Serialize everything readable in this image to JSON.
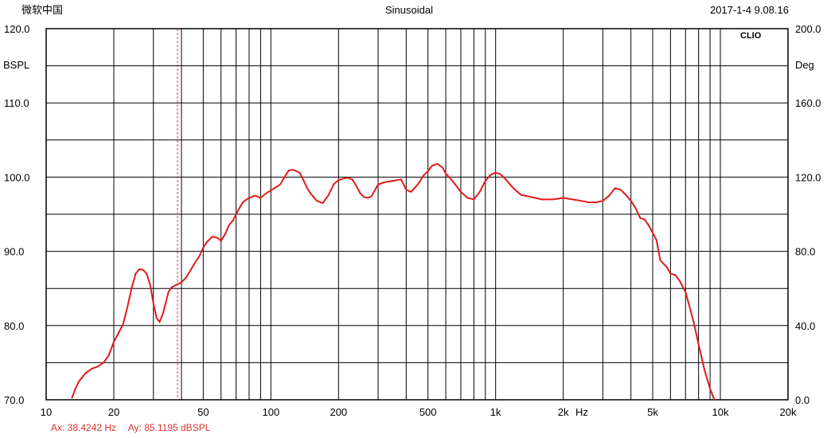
{
  "header": {
    "left_text": "微软中国",
    "title": "Sinusoidal",
    "timestamp": "2017-1-4 9.08.16",
    "brand": "CLIO"
  },
  "cursor": {
    "ax_text": "Ax: 38.4242 Hz",
    "ay_text": "Ay: 85.1195 dBSPL",
    "x": 38.4242,
    "y": 85.1195,
    "color": "#e03030"
  },
  "colors": {
    "curve": "#e01a1a",
    "cursor": "#e03030",
    "grid": "#000000",
    "background": "#ffffff"
  },
  "chart_data": {
    "type": "line",
    "x_scale": "log",
    "xlim": [
      10,
      20000
    ],
    "ylim": [
      70,
      120
    ],
    "y2lim": [
      0,
      200
    ],
    "grid": true,
    "ylabel": "BSPL",
    "y2label": "Deg",
    "xunit_label": "Hz",
    "x_ticks": [
      {
        "value": 10,
        "label": "10"
      },
      {
        "value": 20,
        "label": "20"
      },
      {
        "value": 50,
        "label": "50"
      },
      {
        "value": 100,
        "label": "100"
      },
      {
        "value": 200,
        "label": "200"
      },
      {
        "value": 500,
        "label": "500"
      },
      {
        "value": 1000,
        "label": "1k"
      },
      {
        "value": 2000,
        "label": "2k"
      },
      {
        "value": 5000,
        "label": "5k"
      },
      {
        "value": 10000,
        "label": "10k"
      },
      {
        "value": 20000,
        "label": "20k"
      }
    ],
    "y_ticks": [
      {
        "value": 70,
        "label": "70.0"
      },
      {
        "value": 80,
        "label": "80.0"
      },
      {
        "value": 90,
        "label": "90.0"
      },
      {
        "value": 100,
        "label": "100.0"
      },
      {
        "value": 110,
        "label": "110.0"
      },
      {
        "value": 120,
        "label": "120.0"
      }
    ],
    "y2_ticks": [
      {
        "value": 0,
        "label": "0.0"
      },
      {
        "value": 40,
        "label": "40.0"
      },
      {
        "value": 80,
        "label": "80.0"
      },
      {
        "value": 120,
        "label": "120.0"
      },
      {
        "value": 160,
        "label": "160.0"
      },
      {
        "value": 200,
        "label": "200.0"
      }
    ],
    "series": [
      {
        "x": [
          13,
          13.5,
          14,
          15,
          16,
          17,
          18,
          19,
          20,
          21,
          22,
          23,
          24,
          25,
          26,
          27,
          28,
          29,
          30,
          31,
          32,
          33,
          34,
          35,
          36,
          37,
          38,
          40,
          42,
          44,
          46,
          48,
          50,
          52,
          55,
          58,
          60,
          63,
          65,
          68,
          70,
          73,
          75,
          78,
          80,
          85,
          90,
          95,
          100,
          105,
          110,
          115,
          120,
          125,
          130,
          135,
          140,
          145,
          150,
          160,
          170,
          180,
          190,
          200,
          210,
          220,
          230,
          240,
          250,
          260,
          270,
          280,
          300,
          320,
          350,
          380,
          400,
          420,
          450,
          480,
          500,
          520,
          550,
          580,
          600,
          650,
          700,
          750,
          800,
          850,
          900,
          950,
          1000,
          1050,
          1100,
          1200,
          1300,
          1400,
          1500,
          1600,
          1800,
          2000,
          2200,
          2400,
          2600,
          2800,
          3000,
          3200,
          3400,
          3600,
          3800,
          4000,
          4200,
          4400,
          4600,
          4800,
          5000,
          5200,
          5400,
          5600,
          5800,
          6000,
          6300,
          6600,
          7000,
          7300,
          7600,
          8000,
          8500,
          9000,
          9400
        ],
        "y": [
          70.2,
          71.5,
          72.5,
          73.6,
          74.2,
          74.5,
          75.0,
          76.0,
          77.8,
          79.0,
          80.2,
          82.5,
          85.0,
          87.0,
          87.6,
          87.5,
          87.0,
          85.5,
          83.0,
          81.0,
          80.5,
          81.5,
          83.0,
          84.5,
          85.1,
          85.3,
          85.5,
          85.8,
          86.5,
          87.5,
          88.5,
          89.3,
          90.5,
          91.3,
          92.0,
          91.8,
          91.4,
          92.5,
          93.5,
          94.2,
          95.0,
          96.0,
          96.6,
          97.0,
          97.2,
          97.5,
          97.2,
          97.8,
          98.2,
          98.6,
          99.0,
          100.0,
          100.9,
          101.0,
          100.8,
          100.5,
          99.5,
          98.5,
          97.8,
          96.8,
          96.5,
          97.5,
          99.0,
          99.6,
          99.8,
          99.9,
          99.7,
          98.8,
          97.8,
          97.3,
          97.2,
          97.4,
          99.0,
          99.3,
          99.5,
          99.7,
          98.3,
          98.0,
          99.0,
          100.3,
          100.8,
          101.5,
          101.8,
          101.3,
          100.5,
          99.3,
          98.0,
          97.2,
          97.0,
          98.0,
          99.5,
          100.3,
          100.6,
          100.4,
          99.8,
          98.5,
          97.6,
          97.4,
          97.2,
          97.0,
          97.0,
          97.2,
          97.0,
          96.8,
          96.6,
          96.6,
          96.8,
          97.5,
          98.5,
          98.3,
          97.6,
          96.8,
          95.8,
          94.5,
          94.3,
          93.5,
          92.5,
          91.5,
          88.8,
          88.3,
          87.8,
          87.0,
          86.8,
          86.0,
          84.5,
          82.5,
          80.5,
          77.5,
          74.0,
          71.5,
          70.0
        ]
      }
    ]
  }
}
